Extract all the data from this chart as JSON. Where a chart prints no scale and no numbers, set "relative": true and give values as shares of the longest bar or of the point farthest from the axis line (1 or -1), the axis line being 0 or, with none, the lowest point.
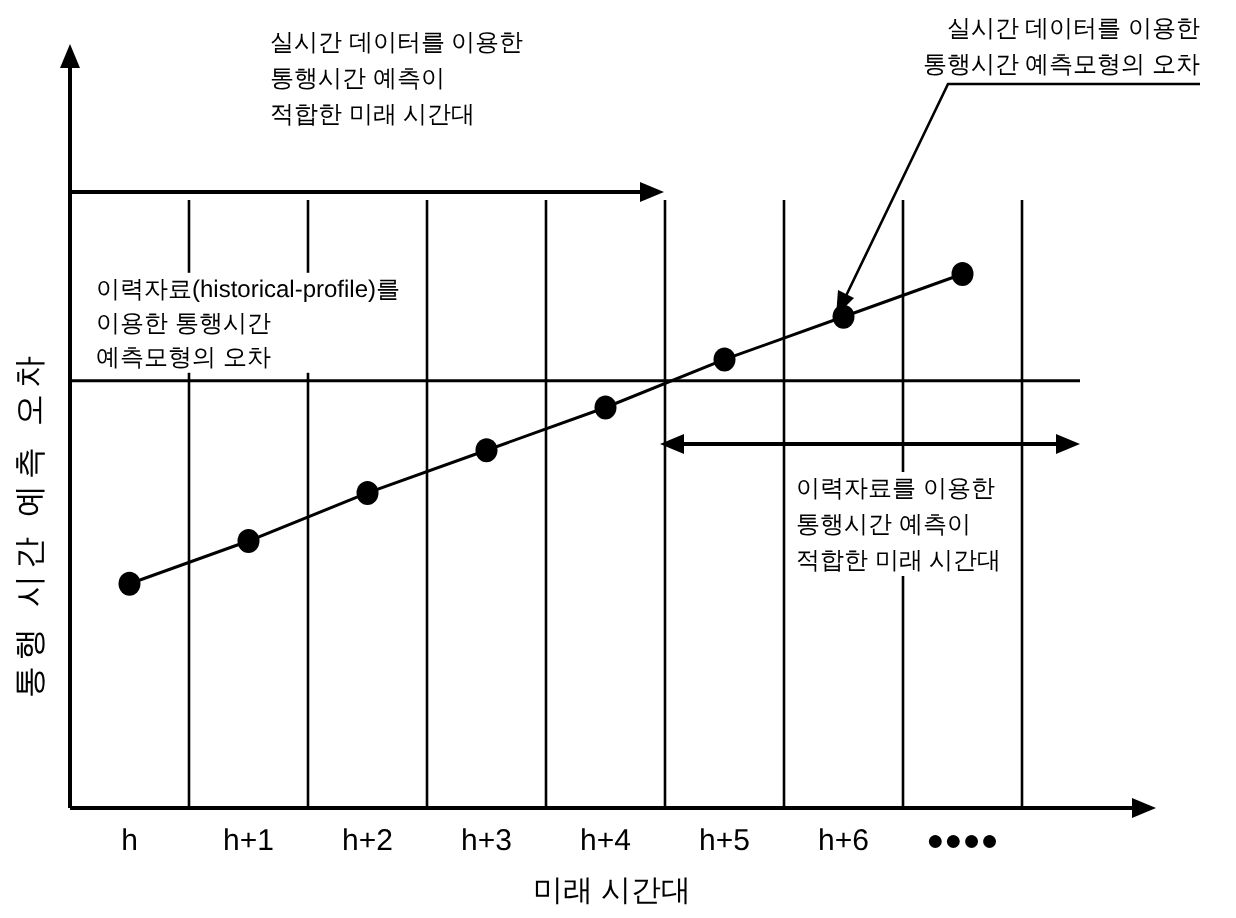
{
  "chart_data": {
    "type": "line",
    "relative": true,
    "xlabel": "미래 시간대",
    "ylabel": "통행 시간 예측 오차",
    "categories": [
      "h",
      "h+1",
      "h+2",
      "h+3",
      "h+4",
      "h+5",
      "h+6",
      "●●●●"
    ],
    "series": [
      {
        "color": "#000000",
        "values": [
          0.42,
          0.5,
          0.59,
          0.67,
          0.75,
          0.84,
          0.92,
          1.0
        ]
      }
    ],
    "marker": "circle",
    "line_style": "solid",
    "grid": "x",
    "legend": false,
    "ref_lines": [
      {
        "axis": "y",
        "value": 0.8,
        "label": "이력자료(historical-profile)를\n이용한 통행시간\n예측모형의 오차",
        "color": "#000000"
      }
    ],
    "annotations": [
      "실시간 데이터를 이용한\n통행시간 예측이\n적합한 미래 시간대",
      "실시간 데이터를 이용한\n통행시간 예측모형의 오차",
      "이력자료를 이용한\n통행시간 예측이\n적합한 미래 시간대"
    ]
  }
}
